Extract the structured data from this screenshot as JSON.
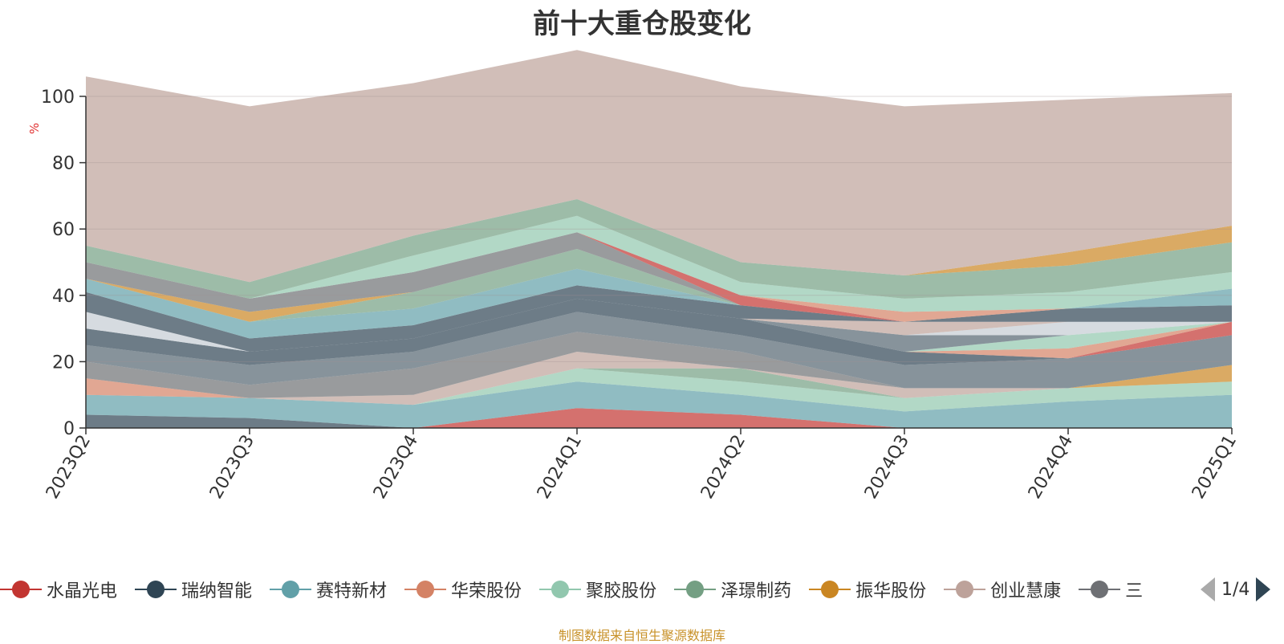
{
  "title": "前十大重仓股变化",
  "footer": "制图数据来自恒生聚源数据库",
  "pager": {
    "text": "1/4"
  },
  "chart_data": {
    "type": "area",
    "title": "前十大重仓股变化",
    "ylabel": "%",
    "ylim": [
      0,
      100
    ],
    "yticks": [
      0,
      20,
      40,
      60,
      80,
      100
    ],
    "categories": [
      "2023Q2",
      "2023Q3",
      "2023Q4",
      "2024Q1",
      "2024Q2",
      "2024Q3",
      "2024Q4",
      "2025Q1"
    ],
    "grid": true,
    "legend_position": "bottom",
    "series": [
      {
        "color": "#c23531",
        "values": [
          0,
          0,
          0,
          6,
          4,
          0,
          0,
          0
        ]
      },
      {
        "color": "#2f4554",
        "values": [
          4,
          3,
          0,
          0,
          0,
          0,
          0,
          0
        ]
      },
      {
        "color": "#61a0a8",
        "values": [
          6,
          6,
          7,
          8,
          6,
          5,
          8,
          10
        ]
      },
      {
        "color": "#d48265",
        "values": [
          5,
          0,
          0,
          0,
          0,
          0,
          0,
          0
        ]
      },
      {
        "color": "#91c7ae",
        "values": [
          0,
          0,
          0,
          4,
          4,
          4,
          4,
          4
        ]
      },
      {
        "color": "#749f83",
        "values": [
          0,
          0,
          0,
          0,
          4,
          0,
          0,
          0
        ]
      },
      {
        "color": "#ca8622",
        "values": [
          0,
          0,
          0,
          0,
          0,
          0,
          0,
          5
        ]
      },
      {
        "color": "#bda29a",
        "values": [
          0,
          0,
          3,
          5,
          0,
          3,
          0,
          0
        ]
      },
      {
        "color": "#6e7074",
        "values": [
          5,
          4,
          8,
          6,
          5,
          0,
          0,
          0
        ]
      },
      {
        "color": "#546570",
        "values": [
          5,
          6,
          5,
          6,
          5,
          7,
          9,
          9
        ]
      },
      {
        "color": "#c4ccd3",
        "values": [
          0,
          0,
          0,
          0,
          0,
          0,
          0,
          0
        ]
      },
      {
        "color": "#c23531",
        "values": [
          0,
          0,
          0,
          0,
          0,
          0,
          0,
          4
        ]
      },
      {
        "color": "#2f4554",
        "values": [
          5,
          4,
          4,
          4,
          5,
          4,
          0,
          0
        ]
      },
      {
        "color": "#61a0a8",
        "values": [
          0,
          0,
          0,
          0,
          0,
          0,
          0,
          0
        ]
      },
      {
        "color": "#d48265",
        "values": [
          0,
          0,
          0,
          0,
          0,
          0,
          3,
          0
        ]
      },
      {
        "color": "#91c7ae",
        "values": [
          0,
          0,
          0,
          0,
          0,
          0,
          4,
          0
        ]
      },
      {
        "color": "#546570",
        "values": [
          0,
          0,
          0,
          0,
          0,
          5,
          0,
          0
        ]
      },
      {
        "color": "#c4ccd3",
        "values": [
          5,
          0,
          0,
          0,
          0,
          0,
          4,
          0
        ]
      },
      {
        "color": "#bda29a",
        "values": [
          0,
          0,
          0,
          0,
          0,
          4,
          0,
          0
        ]
      },
      {
        "color": "#2f4554",
        "values": [
          6,
          4,
          4,
          4,
          4,
          0,
          4,
          5
        ]
      },
      {
        "color": "#61a0a8",
        "values": [
          4,
          5,
          5,
          5,
          0,
          0,
          0,
          5
        ]
      },
      {
        "color": "#749f83",
        "values": [
          0,
          0,
          5,
          6,
          0,
          0,
          0,
          0
        ]
      },
      {
        "color": "#ca8622",
        "values": [
          0,
          3,
          0,
          0,
          0,
          0,
          0,
          0
        ]
      },
      {
        "color": "#91c7ae",
        "values": [
          0,
          0,
          0,
          0,
          0,
          0,
          0,
          0
        ]
      },
      {
        "color": "#6e7074",
        "values": [
          5,
          4,
          6,
          5,
          0,
          0,
          0,
          0
        ]
      },
      {
        "color": "#c23531",
        "values": [
          0,
          0,
          0,
          0,
          3,
          0,
          0,
          0
        ]
      },
      {
        "color": "#d48265",
        "values": [
          0,
          0,
          0,
          0,
          0,
          3,
          0,
          0
        ]
      },
      {
        "color": "#91c7ae",
        "values": [
          0,
          0,
          5,
          5,
          4,
          4,
          5,
          5
        ]
      },
      {
        "color": "#749f83",
        "values": [
          5,
          5,
          6,
          5,
          6,
          7,
          8,
          9
        ]
      },
      {
        "color": "#ca8622",
        "values": [
          0,
          0,
          0,
          0,
          0,
          0,
          4,
          5
        ]
      },
      {
        "color": "#bda29a",
        "values": [
          51,
          53,
          46,
          45,
          53,
          51,
          46,
          40
        ]
      }
    ]
  },
  "legend": {
    "items": [
      {
        "label": "水晶光电",
        "color": "#c23531"
      },
      {
        "label": "瑞纳智能",
        "color": "#2f4554"
      },
      {
        "label": "赛特新材",
        "color": "#61a0a8"
      },
      {
        "label": "华荣股份",
        "color": "#d48265"
      },
      {
        "label": "聚胶股份",
        "color": "#91c7ae"
      },
      {
        "label": "泽璟制药",
        "color": "#749f83"
      },
      {
        "label": "振华股份",
        "color": "#ca8622"
      },
      {
        "label": "创业慧康",
        "color": "#bda29a"
      },
      {
        "label": "三",
        "color": "#6e7074"
      }
    ]
  }
}
